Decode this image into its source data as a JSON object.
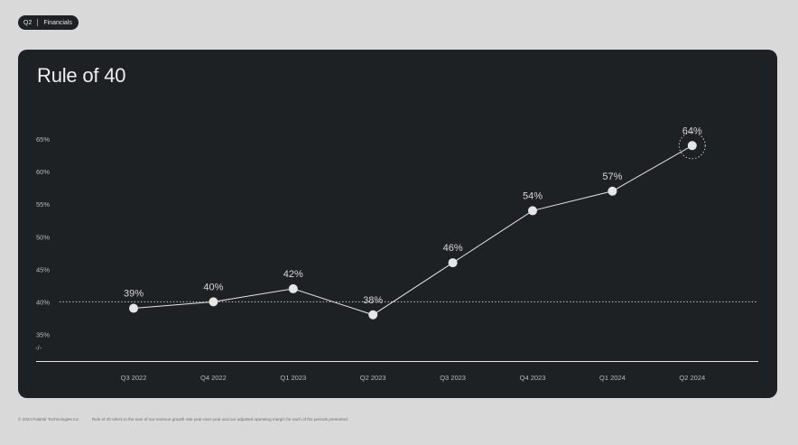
{
  "badge": {
    "quarter": "Q2",
    "section": "Financials"
  },
  "footer": {
    "copyright": "© 2024 Palantir Technologies Inc.",
    "note": "Rule of 40 refers to the sum of our revenue growth rate year-over-year and our adjusted operating margin for each of the periods presented."
  },
  "chart_data": {
    "type": "line",
    "title": "Rule of 40",
    "xlabel": "",
    "ylabel": "",
    "categories": [
      "Q3 2022",
      "Q4 2022",
      "Q1 2023",
      "Q2 2023",
      "Q3 2023",
      "Q4 2023",
      "Q1 2024",
      "Q2 2024"
    ],
    "series": [
      {
        "values": [
          39,
          40,
          42,
          38,
          46,
          54,
          57,
          64
        ]
      }
    ],
    "data_labels": [
      "39%",
      "40%",
      "42%",
      "38%",
      "46%",
      "54%",
      "57%",
      "64%"
    ],
    "yticks": [
      35,
      40,
      45,
      50,
      55,
      60,
      65
    ],
    "ytick_labels": [
      "35%",
      "40%",
      "45%",
      "50%",
      "55%",
      "60%",
      "65%"
    ],
    "ylim": [
      30,
      70
    ],
    "axis_break": "-/-",
    "reference_line": 40,
    "highlight_index": 7,
    "grid": false,
    "colors": {
      "background": "#1e2124",
      "line": "#e6e6e6",
      "text": "#d8d8d8",
      "muted": "#b8bcbf"
    }
  }
}
